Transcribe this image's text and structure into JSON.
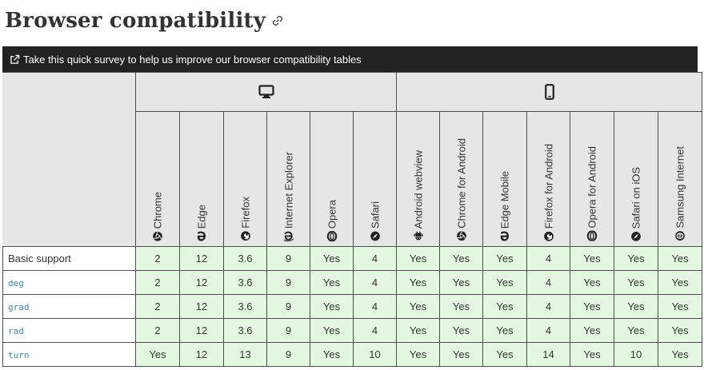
{
  "heading": {
    "title": "Browser compatibility",
    "link_icon": "link-icon"
  },
  "survey": {
    "text": "Take this quick survey to help us improve our browser compatibility tables",
    "icon": "external-link-icon"
  },
  "platforms": [
    {
      "name": "Desktop",
      "icon": "desktop-icon"
    },
    {
      "name": "Mobile",
      "icon": "mobile-icon"
    }
  ],
  "browsers": [
    {
      "name": "Chrome",
      "icon": "chrome-icon"
    },
    {
      "name": "Edge",
      "icon": "edge-icon"
    },
    {
      "name": "Firefox",
      "icon": "firefox-icon"
    },
    {
      "name": "Internet Explorer",
      "icon": "ie-icon"
    },
    {
      "name": "Opera",
      "icon": "opera-icon"
    },
    {
      "name": "Safari",
      "icon": "safari-icon"
    },
    {
      "name": "Android webview",
      "icon": "android-icon"
    },
    {
      "name": "Chrome for Android",
      "icon": "chrome-icon"
    },
    {
      "name": "Edge Mobile",
      "icon": "edge-icon"
    },
    {
      "name": "Firefox for Android",
      "icon": "firefox-icon"
    },
    {
      "name": "Opera for Android",
      "icon": "opera-icon"
    },
    {
      "name": "Safari on iOS",
      "icon": "safari-icon"
    },
    {
      "name": "Samsung Internet",
      "icon": "samsung-icon"
    }
  ],
  "rows": [
    {
      "feature": "Basic support",
      "code": false,
      "values": [
        "2",
        "12",
        "3.6",
        "9",
        "Yes",
        "4",
        "Yes",
        "Yes",
        "Yes",
        "4",
        "Yes",
        "Yes",
        "Yes"
      ]
    },
    {
      "feature": "deg",
      "code": true,
      "values": [
        "2",
        "12",
        "3.6",
        "9",
        "Yes",
        "4",
        "Yes",
        "Yes",
        "Yes",
        "4",
        "Yes",
        "Yes",
        "Yes"
      ]
    },
    {
      "feature": "grad",
      "code": true,
      "values": [
        "2",
        "12",
        "3.6",
        "9",
        "Yes",
        "4",
        "Yes",
        "Yes",
        "Yes",
        "4",
        "Yes",
        "Yes",
        "Yes"
      ]
    },
    {
      "feature": "rad",
      "code": true,
      "values": [
        "2",
        "12",
        "3.6",
        "9",
        "Yes",
        "4",
        "Yes",
        "Yes",
        "Yes",
        "4",
        "Yes",
        "Yes",
        "Yes"
      ]
    },
    {
      "feature": "turn",
      "code": true,
      "values": [
        "Yes",
        "12",
        "13",
        "9",
        "Yes",
        "10",
        "Yes",
        "Yes",
        "Yes",
        "14",
        "Yes",
        "10",
        "Yes"
      ]
    }
  ],
  "colors": {
    "supported_bg": "#e4f8e1",
    "header_bg": "#e6e6e6",
    "survey_bg": "#222222",
    "code_text": "#3f87a6"
  }
}
